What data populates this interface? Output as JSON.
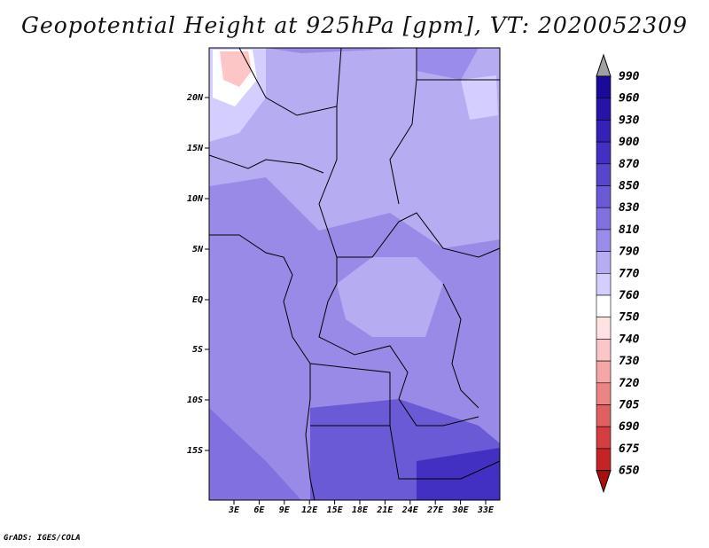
{
  "title": "Geopotential Height at 925hPa [gpm], VT: 2020052309",
  "credit": "GrADS: IGES/COLA",
  "lat_labels": [
    "20N",
    "15N",
    "10N",
    "5N",
    "EQ",
    "5S",
    "10S",
    "15S"
  ],
  "lon_labels": [
    "3E",
    "6E",
    "9E",
    "12E",
    "15E",
    "18E",
    "21E",
    "24E",
    "27E",
    "30E",
    "33E"
  ],
  "colorbar": {
    "labels": [
      "990",
      "960",
      "930",
      "900",
      "870",
      "850",
      "830",
      "810",
      "790",
      "770",
      "760",
      "750",
      "740",
      "730",
      "720",
      "705",
      "690",
      "675",
      "650"
    ],
    "colors": [
      "#1a0a9a",
      "#2614a8",
      "#3422b6",
      "#4230c2",
      "#5646cc",
      "#6a5ad6",
      "#8070e0",
      "#9a8cea",
      "#b6acf2",
      "#d4ceff",
      "#ffffff",
      "#ffe2e2",
      "#fcc6c6",
      "#f5a6a6",
      "#ec8484",
      "#e06060",
      "#d43e3e",
      "#c42424",
      "#a81010"
    ]
  },
  "chart_data": {
    "type": "heatmap",
    "title": "Geopotential Height at 925hPa [gpm], VT: 2020052309",
    "variable": "Geopotential Height",
    "level": "925hPa",
    "units": "gpm",
    "valid_time": "2020052309",
    "lon_range": [
      0,
      35
    ],
    "lat_range": [
      -20,
      24
    ],
    "colorbar_levels": [
      650,
      675,
      690,
      705,
      720,
      730,
      740,
      750,
      760,
      770,
      790,
      810,
      830,
      850,
      870,
      900,
      930,
      960,
      990
    ]
  }
}
